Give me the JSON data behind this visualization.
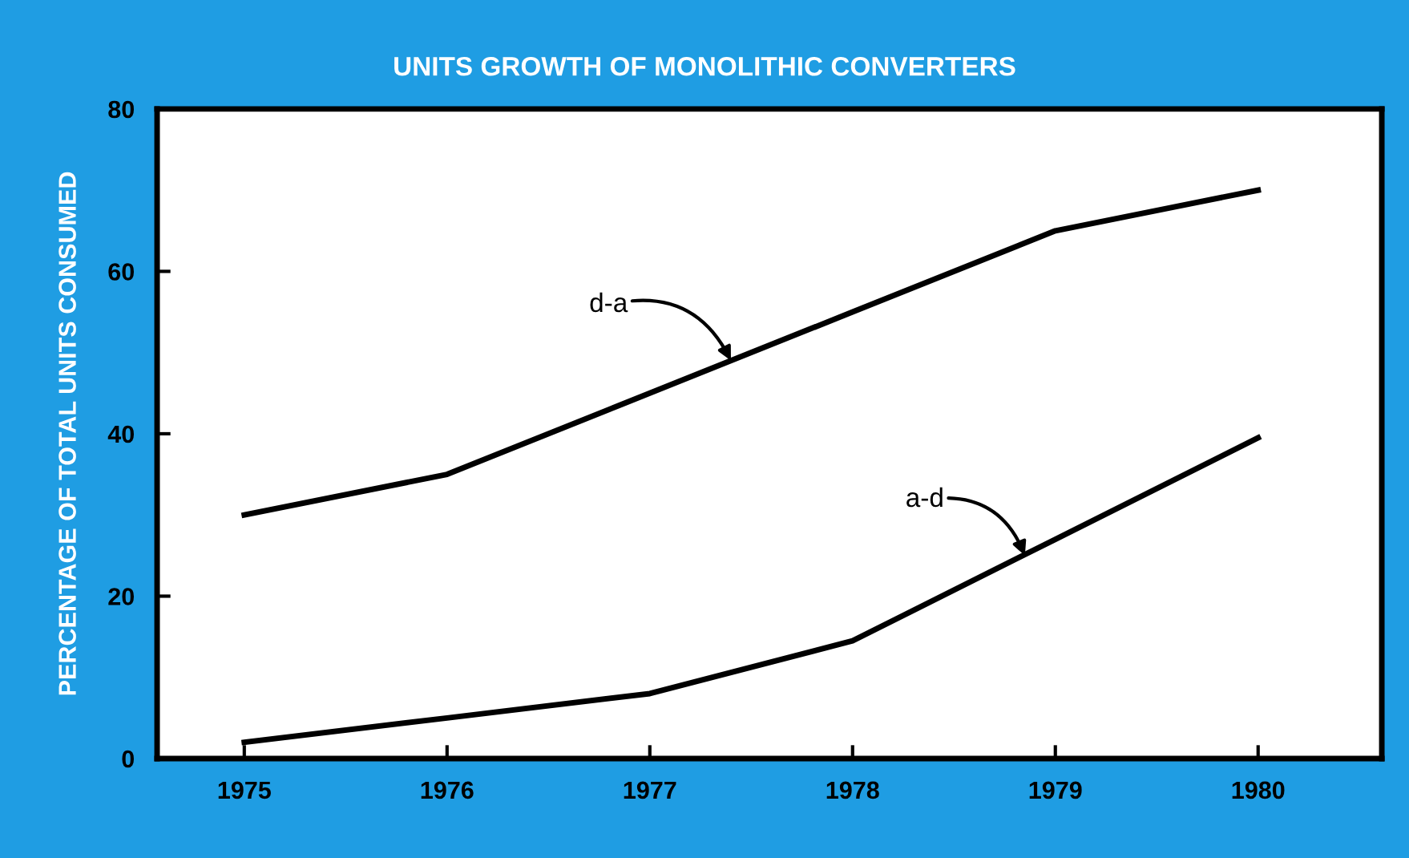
{
  "chart_data": {
    "type": "line",
    "title": "UNITS GROWTH OF MONOLITHIC CONVERTERS",
    "ylabel": "PERCENTAGE OF TOTAL UNITS CONSUMED",
    "x": [
      1975,
      1976,
      1977,
      1978,
      1979,
      1980
    ],
    "series": [
      {
        "color": "#000000",
        "values": [
          30,
          35,
          45,
          55,
          65,
          70
        ]
      },
      {
        "color": "#000000",
        "values": [
          2,
          5,
          8,
          14.5,
          27,
          39.5
        ]
      }
    ],
    "xlim": [
      1974.57,
      1980.61
    ],
    "ylim": [
      0,
      80
    ],
    "xticks": [
      1975,
      1976,
      1977,
      1978,
      1979,
      1980
    ],
    "yticks": [
      0,
      20,
      40,
      60,
      80
    ],
    "grid": false,
    "legend": false,
    "marker": "none",
    "line_style": "solid",
    "annotations": [
      {
        "text": "d-a",
        "x": 1977.4,
        "y": 49
      },
      {
        "text": "a-d",
        "x": 1978.85,
        "y": 25
      }
    ]
  }
}
